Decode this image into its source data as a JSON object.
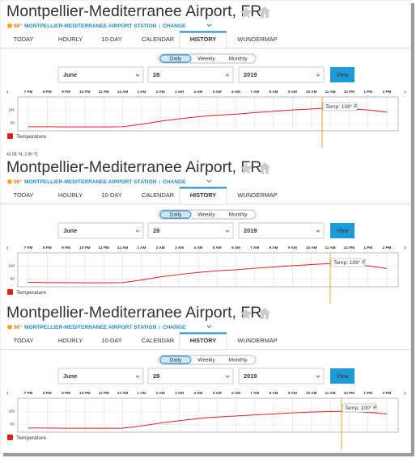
{
  "panels": [
    {
      "title": "Montpellier-Mediterranee Airport, FR",
      "temperature": "90°",
      "station": "MONTPELLIER-MEDITERRANEE AIRPORT STATION",
      "separator": "|",
      "change": "CHANGE",
      "tabs": [
        "TODAY",
        "HOURLY",
        "10-DAY",
        "CALENDAR",
        "HISTORY",
        "WUNDERMAP"
      ],
      "active_tab": 4,
      "periods": [
        "Daily",
        "Weekly",
        "Monthly"
      ],
      "active_period": 0,
      "month": "June",
      "day": "28",
      "year": "2019",
      "button": "View",
      "chart_data": {
        "type": "line",
        "categories": [
          "7 PM",
          "8 PM",
          "9 PM",
          "10 PM",
          "11 PM",
          "12 AM",
          "1 AM",
          "2 AM",
          "3 AM",
          "4 AM",
          "5 AM",
          "6 AM",
          "7 AM",
          "8 AM",
          "9 AM",
          "10 AM",
          "11 AM",
          "12 PM",
          "1 PM",
          "2 PM"
        ],
        "series": [
          {
            "name": "Temperature",
            "color": "#e0201b",
            "values": [
              36,
              36,
              35,
              35,
              35,
              36,
              45,
              57,
              66,
              74,
              80,
              84,
              90,
              95,
              100,
              104,
              108,
              104,
              100,
              92
            ]
          }
        ],
        "ylim": [
          20,
          150
        ],
        "yticks": [
          50,
          100
        ],
        "grid": true,
        "tooltip": "Temp: 108° F"
      }
    },
    {
      "title": "Montpellier-Mediterranee Airport, FR",
      "temperature": "90°",
      "station": "MONTPELLIER-MEDITERRANEE AIRPORT STATION",
      "separator": "|",
      "change": "CHANGE",
      "tabs": [
        "TODAY",
        "HOURLY",
        "10-DAY",
        "CALENDAR",
        "HISTORY",
        "WUNDERMAP"
      ],
      "active_tab": 4,
      "periods": [
        "Daily",
        "Weekly",
        "Monthly"
      ],
      "active_period": 0,
      "month": "June",
      "day": "28",
      "year": "2019",
      "button": "View",
      "chart_data": {
        "type": "line",
        "categories": [
          "7 PM",
          "8 PM",
          "9 PM",
          "10 PM",
          "11 PM",
          "12 AM",
          "1 AM",
          "2 AM",
          "3 AM",
          "4 AM",
          "5 AM",
          "6 AM",
          "7 AM",
          "8 AM",
          "9 AM",
          "10 AM",
          "11 AM",
          "12 PM",
          "1 PM",
          "2 PM"
        ],
        "series": [
          {
            "name": "Temperature",
            "color": "#e0201b",
            "values": [
              37,
              36,
              36,
              35,
              35,
              36,
              46,
              58,
              67,
              75,
              81,
              85,
              91,
              96,
              101,
              105,
              109,
              106,
              100,
              90
            ]
          }
        ],
        "ylim": [
          20,
          150
        ],
        "yticks": [
          50,
          100
        ],
        "grid": true,
        "tooltip": "Temp: 109° F"
      }
    },
    {
      "title": "Montpellier-Mediterranee Airport, FR",
      "temperature": "90°",
      "station": "MONTPELLIER-MEDITERRANEE AIRPORT STATION",
      "separator": "|",
      "change": "CHANGE",
      "tabs": [
        "TODAY",
        "HOURLY",
        "10-DAY",
        "CALENDAR",
        "HISTORY",
        "WUNDERMAP"
      ],
      "active_tab": 4,
      "periods": [
        "Daily",
        "Weekly",
        "Monthly"
      ],
      "active_period": 0,
      "month": "June",
      "day": "28",
      "year": "2019",
      "button": "View",
      "chart_data": {
        "type": "line",
        "categories": [
          "7 PM",
          "8 PM",
          "9 PM",
          "10 PM",
          "11 PM",
          "12 AM",
          "1 AM",
          "2 AM",
          "3 AM",
          "4 AM",
          "5 AM",
          "6 AM",
          "7 AM",
          "8 AM",
          "9 AM",
          "10 AM",
          "11 AM",
          "12 PM",
          "1 PM",
          "2 PM"
        ],
        "series": [
          {
            "name": "Temperature",
            "color": "#e0201b",
            "values": [
              36,
              36,
              35,
              35,
              35,
              35,
              44,
              55,
              64,
              72,
              78,
              82,
              86,
              90,
              94,
              97,
              99,
              100,
              96,
              90
            ]
          }
        ],
        "ylim": [
          20,
          150
        ],
        "yticks": [
          50,
          100
        ],
        "grid": true,
        "tooltip": "Temp: 100° F"
      }
    }
  ],
  "coordinates": "43.58 °N, 3.96 °E"
}
